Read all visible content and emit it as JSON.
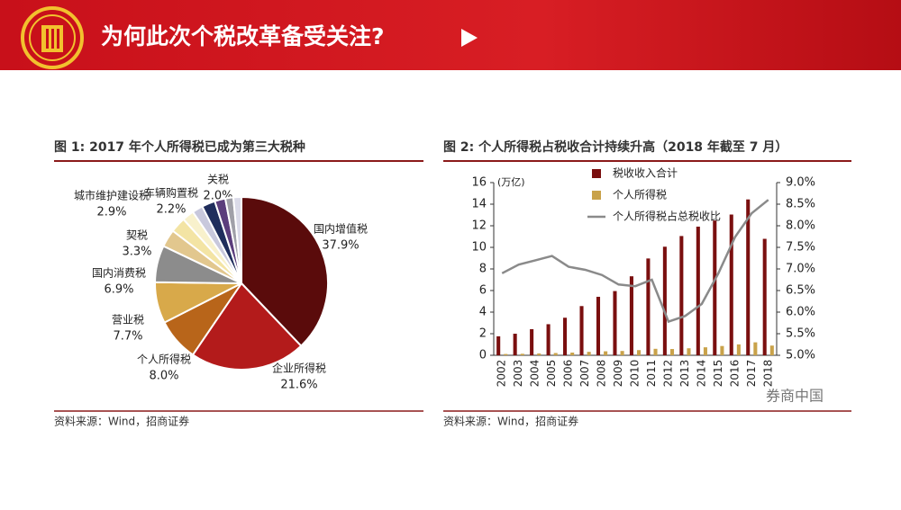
{
  "header": {
    "title": "为何此次个税改革备受关注?"
  },
  "watermark": "券商中国",
  "chart_data": [
    {
      "type": "pie",
      "title": "图 1:  2017 年个人所得税已成为第三大税种",
      "source": "资料来源：Wind，招商证券",
      "categories": [
        "国内增值税",
        "企业所得税",
        "个人所得税",
        "营业税",
        "国内消费税",
        "契税",
        "城市维护建设税",
        "车辆购置税",
        "关税",
        null,
        null,
        null,
        null
      ],
      "values": [
        37.9,
        21.6,
        8.0,
        7.7,
        6.9,
        3.3,
        2.9,
        2.2,
        2.0,
        2.5,
        2.0,
        1.5,
        1.5
      ],
      "value_labels": [
        "37.9%",
        "21.6%",
        "8.0%",
        "7.7%",
        "6.9%",
        "3.3%",
        "2.9%",
        "2.2%",
        "2.0%",
        null,
        null,
        null,
        null
      ],
      "colors": [
        "#5a0b0b",
        "#b31b1b",
        "#b8651a",
        "#d8a94a",
        "#8c8c8c",
        "#e2c78e",
        "#f3e4a4",
        "#f8f1cc",
        "#c8c8dc",
        "#1f2d5c",
        "#5b3d7c",
        "#a0a0a8",
        "#dadae8"
      ]
    },
    {
      "type": "bar-line",
      "title": "图 2: 个人所得税占税收合计持续升高（2018 年截至 7 月）",
      "source": "资料来源：Wind，招商证券",
      "y_label": "(万亿)",
      "categories": [
        "2002",
        "2003",
        "2004",
        "2005",
        "2006",
        "2007",
        "2008",
        "2009",
        "2010",
        "2011",
        "2012",
        "2013",
        "2014",
        "2015",
        "2016",
        "2017",
        "2018"
      ],
      "ylim": [
        0,
        16
      ],
      "yticks": [
        0,
        2,
        4,
        6,
        8,
        10,
        12,
        14,
        16
      ],
      "y2lim": [
        5,
        9
      ],
      "y2ticks": [
        {
          "value": 5,
          "label": "5.0%"
        },
        {
          "value": 5.5,
          "label": "5.5%"
        },
        {
          "value": 6,
          "label": "6.0%"
        },
        {
          "value": 6.5,
          "label": "6.5%"
        },
        {
          "value": 7,
          "label": "7.0%"
        },
        {
          "value": 7.5,
          "label": "7.5%"
        },
        {
          "value": 8,
          "label": "8.0%"
        },
        {
          "value": 8.5,
          "label": "8.5%"
        },
        {
          "value": 9,
          "label": "9.0%"
        }
      ],
      "series": [
        {
          "name": "税收收入合计",
          "color": "#7a0f0f",
          "kind": "bar",
          "values": [
            1.76,
            2.0,
            2.42,
            2.88,
            3.48,
            4.56,
            5.42,
            5.95,
            7.32,
            8.97,
            10.06,
            11.05,
            11.92,
            12.49,
            13.04,
            14.44,
            10.79
          ]
        },
        {
          "name": "个人所得税",
          "color": "#c9a24a",
          "kind": "bar",
          "values": [
            0.12,
            0.14,
            0.17,
            0.21,
            0.25,
            0.32,
            0.37,
            0.4,
            0.48,
            0.6,
            0.58,
            0.65,
            0.74,
            0.86,
            1.01,
            1.2,
            0.9
          ]
        },
        {
          "name": "个人所得税占总税收比",
          "color": "#8a8a8a",
          "kind": "line",
          "axis": "y2",
          "values": [
            6.9,
            7.1,
            7.2,
            7.3,
            7.05,
            6.98,
            6.86,
            6.64,
            6.6,
            6.75,
            5.78,
            5.91,
            6.19,
            6.9,
            7.74,
            8.29,
            8.6
          ]
        }
      ]
    }
  ]
}
